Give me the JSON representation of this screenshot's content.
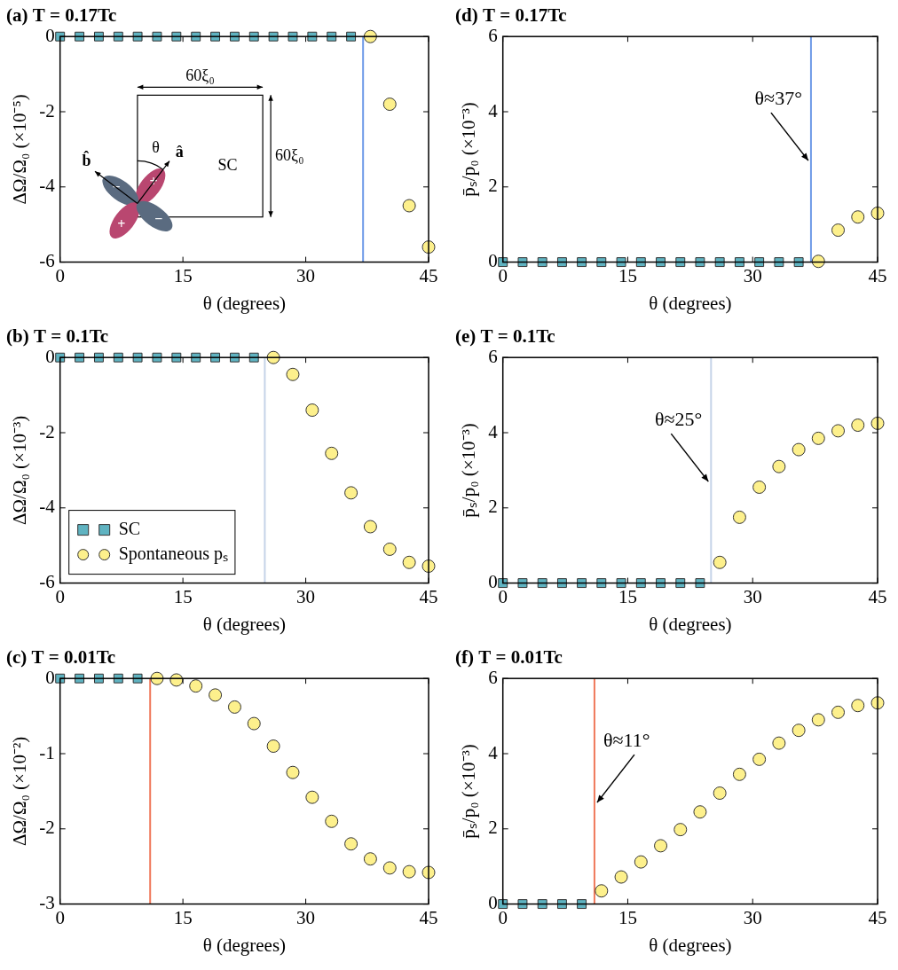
{
  "chart_data": [
    {
      "type": "scatter",
      "title": "(a) T = 0.17Tc",
      "x_label": "θ (degrees)",
      "y_label": "ΔΩ/Ω₀ (×10⁻⁵)",
      "xlim": [
        0,
        45
      ],
      "xticks": [
        0,
        15,
        30,
        45
      ],
      "ylim": [
        -6,
        0
      ],
      "yticks": [
        -6,
        -4,
        -2,
        0
      ],
      "grid": false,
      "legend": false,
      "series": [
        {
          "name": "SC",
          "color": "#5fb3c1",
          "marker": "square",
          "x": [
            0,
            2.37,
            4.74,
            7.11,
            9.47,
            11.84,
            14.21,
            16.58,
            18.95,
            21.32,
            23.68,
            26.05,
            28.42,
            30.79,
            33.16,
            35.53
          ],
          "values": [
            0,
            0,
            0,
            0,
            0,
            0,
            0,
            0,
            0,
            0,
            0,
            0,
            0,
            0,
            0,
            0
          ]
        },
        {
          "name": "Spontaneous pₛ",
          "color": "#fdf08c",
          "marker": "circle",
          "x": [
            37.89,
            40.26,
            42.63,
            45
          ],
          "values": [
            0,
            -1.8,
            -4.5,
            -5.6
          ]
        }
      ],
      "vlines": [
        {
          "x": 37,
          "color": "#6f9be8"
        }
      ],
      "inset": {
        "width_label": "60ξ₀",
        "height_label": "60ξ₀",
        "region_label": "SC",
        "angle_label": "θ",
        "axis_a": "â",
        "axis_b": "b̂",
        "lobe_signs": [
          "+",
          "−",
          "+",
          "−"
        ]
      }
    },
    {
      "type": "scatter",
      "title": "(b) T = 0.1Tc",
      "x_label": "θ (degrees)",
      "y_label": "ΔΩ/Ω₀ (×10⁻³)",
      "xlim": [
        0,
        45
      ],
      "xticks": [
        0,
        15,
        30,
        45
      ],
      "ylim": [
        -6,
        0
      ],
      "yticks": [
        -6,
        -4,
        -2,
        0
      ],
      "grid": false,
      "legend": "lower left",
      "series": [
        {
          "name": "SC",
          "color": "#5fb3c1",
          "marker": "square",
          "x": [
            0,
            2.37,
            4.74,
            7.11,
            9.47,
            11.84,
            14.21,
            16.58,
            18.95,
            21.32,
            23.68
          ],
          "values": [
            0,
            0,
            0,
            0,
            0,
            0,
            0,
            0,
            0,
            0,
            0
          ]
        },
        {
          "name": "Spontaneous pₛ",
          "color": "#fdf08c",
          "marker": "circle",
          "x": [
            26.05,
            28.42,
            30.79,
            33.16,
            35.53,
            37.89,
            40.26,
            42.63,
            45
          ],
          "values": [
            0,
            -0.45,
            -1.4,
            -2.55,
            -3.6,
            -4.5,
            -5.1,
            -5.45,
            -5.55
          ]
        }
      ],
      "vlines": [
        {
          "x": 25,
          "color": "#c5d3e8"
        }
      ]
    },
    {
      "type": "scatter",
      "title": "(c) T = 0.01Tc",
      "x_label": "θ (degrees)",
      "y_label": "ΔΩ/Ω₀ (×10⁻²)",
      "xlim": [
        0,
        45
      ],
      "xticks": [
        0,
        15,
        30,
        45
      ],
      "ylim": [
        -3,
        0
      ],
      "yticks": [
        -3,
        -2,
        -1,
        0
      ],
      "grid": false,
      "legend": false,
      "series": [
        {
          "name": "SC",
          "color": "#5fb3c1",
          "marker": "square",
          "x": [
            0,
            2.37,
            4.74,
            7.11,
            9.47
          ],
          "values": [
            0,
            0,
            0,
            0,
            0
          ]
        },
        {
          "name": "Spontaneous pₛ",
          "color": "#fdf08c",
          "marker": "circle",
          "x": [
            11.84,
            14.21,
            16.58,
            18.95,
            21.32,
            23.68,
            26.05,
            28.42,
            30.79,
            33.16,
            35.53,
            37.89,
            40.26,
            42.63,
            45
          ],
          "values": [
            0,
            -0.02,
            -0.1,
            -0.22,
            -0.38,
            -0.6,
            -0.9,
            -1.25,
            -1.58,
            -1.9,
            -2.2,
            -2.4,
            -2.52,
            -2.57,
            -2.58
          ]
        }
      ],
      "vlines": [
        {
          "x": 11,
          "color": "#f0785a"
        }
      ]
    },
    {
      "type": "scatter",
      "title": "(d) T = 0.17Tc",
      "x_label": "θ (degrees)",
      "y_label": "p̄ₛ/p₀ (×10⁻³)",
      "xlim": [
        0,
        45
      ],
      "xticks": [
        0,
        15,
        30,
        45
      ],
      "ylim": [
        0,
        6
      ],
      "yticks": [
        0,
        2,
        4,
        6
      ],
      "grid": false,
      "legend": false,
      "series": [
        {
          "name": "SC",
          "color": "#5fb3c1",
          "marker": "square",
          "x": [
            0,
            2.37,
            4.74,
            7.11,
            9.47,
            11.84,
            14.21,
            16.58,
            18.95,
            21.32,
            23.68,
            26.05,
            28.42,
            30.79,
            33.16,
            35.53
          ],
          "values": [
            0,
            0,
            0,
            0,
            0,
            0,
            0,
            0,
            0,
            0,
            0,
            0,
            0,
            0,
            0,
            0
          ]
        },
        {
          "name": "Spontaneous pₛ",
          "color": "#fdf08c",
          "marker": "circle",
          "x": [
            37.89,
            40.26,
            42.63,
            45
          ],
          "values": [
            0.02,
            0.85,
            1.2,
            1.3
          ]
        }
      ],
      "vlines": [
        {
          "x": 37,
          "color": "#6f9be8"
        }
      ],
      "annotations": [
        {
          "text": "θ≈37°",
          "x": 37
        }
      ]
    },
    {
      "type": "scatter",
      "title": "(e) T = 0.1Tc",
      "x_label": "θ (degrees)",
      "y_label": "p̄ₛ/p₀ (×10⁻³)",
      "xlim": [
        0,
        45
      ],
      "xticks": [
        0,
        15,
        30,
        45
      ],
      "ylim": [
        0,
        6
      ],
      "yticks": [
        0,
        2,
        4,
        6
      ],
      "grid": false,
      "legend": false,
      "series": [
        {
          "name": "SC",
          "color": "#5fb3c1",
          "marker": "square",
          "x": [
            0,
            2.37,
            4.74,
            7.11,
            9.47,
            11.84,
            14.21,
            16.58,
            18.95,
            21.32,
            23.68
          ],
          "values": [
            0,
            0,
            0,
            0,
            0,
            0,
            0,
            0,
            0,
            0,
            0
          ]
        },
        {
          "name": "Spontaneous pₛ",
          "color": "#fdf08c",
          "marker": "circle",
          "x": [
            26.05,
            28.42,
            30.79,
            33.16,
            35.53,
            37.89,
            40.26,
            42.63,
            45
          ],
          "values": [
            0.55,
            1.75,
            2.55,
            3.1,
            3.55,
            3.85,
            4.05,
            4.2,
            4.25
          ]
        }
      ],
      "vlines": [
        {
          "x": 25,
          "color": "#c5d3e8"
        }
      ],
      "annotations": [
        {
          "text": "θ≈25°",
          "x": 25
        }
      ]
    },
    {
      "type": "scatter",
      "title": "(f) T = 0.01Tc",
      "x_label": "θ (degrees)",
      "y_label": "p̄ₛ/p₀ (×10⁻³)",
      "xlim": [
        0,
        45
      ],
      "xticks": [
        0,
        15,
        30,
        45
      ],
      "ylim": [
        0,
        6
      ],
      "yticks": [
        0,
        2,
        4,
        6
      ],
      "grid": false,
      "legend": false,
      "series": [
        {
          "name": "SC",
          "color": "#5fb3c1",
          "marker": "square",
          "x": [
            0,
            2.37,
            4.74,
            7.11,
            9.47
          ],
          "values": [
            0,
            0,
            0,
            0,
            0
          ]
        },
        {
          "name": "Spontaneous pₛ",
          "color": "#fdf08c",
          "marker": "circle",
          "x": [
            11.84,
            14.21,
            16.58,
            18.95,
            21.32,
            23.68,
            26.05,
            28.42,
            30.79,
            33.16,
            35.53,
            37.89,
            40.26,
            42.63,
            45
          ],
          "values": [
            0.35,
            0.72,
            1.12,
            1.55,
            1.98,
            2.45,
            2.95,
            3.45,
            3.85,
            4.28,
            4.62,
            4.9,
            5.1,
            5.28,
            5.35
          ]
        }
      ],
      "vlines": [
        {
          "x": 11,
          "color": "#f0785a"
        }
      ],
      "annotations": [
        {
          "text": "θ≈11°",
          "x": 11
        }
      ]
    }
  ]
}
